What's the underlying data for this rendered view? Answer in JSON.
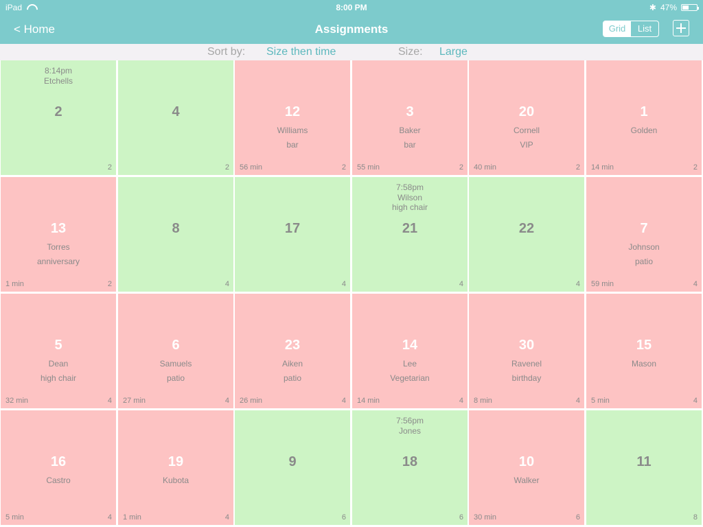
{
  "status_bar": {
    "device": "iPad",
    "time": "8:00 PM",
    "battery": "47%",
    "battery_level": 0.47,
    "icons": [
      "wifi-icon",
      "bluetooth-icon",
      "battery-icon"
    ]
  },
  "nav": {
    "back_label": "< Home",
    "title": "Assignments",
    "view_options": [
      "Grid",
      "List"
    ],
    "selected_view": "Grid",
    "add_icon": "plus-icon"
  },
  "sort_bar": {
    "sort_label": "Sort by:",
    "sort_value": "Size then time",
    "size_label": "Size:",
    "size_value": "Large"
  },
  "colors": {
    "header": "#7dcbcc",
    "accent": "#5cb8bd",
    "available": "#cdf4c5",
    "occupied": "#fdc3c3",
    "text_gray": "#8a8a8a"
  },
  "tables": [
    {
      "number": "2",
      "status": "available",
      "time": "8:14pm",
      "reservation_name": "Etchells",
      "reservation_note": "",
      "name": "",
      "note": "",
      "wait": "",
      "size": "2"
    },
    {
      "number": "4",
      "status": "available",
      "time": "",
      "reservation_name": "",
      "reservation_note": "",
      "name": "",
      "note": "",
      "wait": "",
      "size": "2"
    },
    {
      "number": "12",
      "status": "occupied",
      "time": "",
      "reservation_name": "",
      "reservation_note": "",
      "name": "Williams",
      "note": "bar",
      "wait": "56 min",
      "size": "2"
    },
    {
      "number": "3",
      "status": "occupied",
      "time": "",
      "reservation_name": "",
      "reservation_note": "",
      "name": "Baker",
      "note": "bar",
      "wait": "55 min",
      "size": "2"
    },
    {
      "number": "20",
      "status": "occupied",
      "time": "",
      "reservation_name": "",
      "reservation_note": "",
      "name": "Cornell",
      "note": "VIP",
      "wait": "40 min",
      "size": "2"
    },
    {
      "number": "1",
      "status": "occupied",
      "time": "",
      "reservation_name": "",
      "reservation_note": "",
      "name": "Golden",
      "note": "",
      "wait": "14 min",
      "size": "2"
    },
    {
      "number": "13",
      "status": "occupied",
      "time": "",
      "reservation_name": "",
      "reservation_note": "",
      "name": "Torres",
      "note": "anniversary",
      "wait": "1 min",
      "size": "2"
    },
    {
      "number": "8",
      "status": "available",
      "time": "",
      "reservation_name": "",
      "reservation_note": "",
      "name": "",
      "note": "",
      "wait": "",
      "size": "4"
    },
    {
      "number": "17",
      "status": "available",
      "time": "",
      "reservation_name": "",
      "reservation_note": "",
      "name": "",
      "note": "",
      "wait": "",
      "size": "4"
    },
    {
      "number": "21",
      "status": "available",
      "time": "7:58pm",
      "reservation_name": "Wilson",
      "reservation_note": "high chair",
      "name": "",
      "note": "",
      "wait": "",
      "size": "4"
    },
    {
      "number": "22",
      "status": "available",
      "time": "",
      "reservation_name": "",
      "reservation_note": "",
      "name": "",
      "note": "",
      "wait": "",
      "size": "4"
    },
    {
      "number": "7",
      "status": "occupied",
      "time": "",
      "reservation_name": "",
      "reservation_note": "",
      "name": "Johnson",
      "note": "patio",
      "wait": "59 min",
      "size": "4"
    },
    {
      "number": "5",
      "status": "occupied",
      "time": "",
      "reservation_name": "",
      "reservation_note": "",
      "name": "Dean",
      "note": "high chair",
      "wait": "32 min",
      "size": "4"
    },
    {
      "number": "6",
      "status": "occupied",
      "time": "",
      "reservation_name": "",
      "reservation_note": "",
      "name": "Samuels",
      "note": "patio",
      "wait": "27 min",
      "size": "4"
    },
    {
      "number": "23",
      "status": "occupied",
      "time": "",
      "reservation_name": "",
      "reservation_note": "",
      "name": "Aiken",
      "note": "patio",
      "wait": "26 min",
      "size": "4"
    },
    {
      "number": "14",
      "status": "occupied",
      "time": "",
      "reservation_name": "",
      "reservation_note": "",
      "name": "Lee",
      "note": "Vegetarian",
      "wait": "14 min",
      "size": "4"
    },
    {
      "number": "30",
      "status": "occupied",
      "time": "",
      "reservation_name": "",
      "reservation_note": "",
      "name": "Ravenel",
      "note": "birthday",
      "wait": "8 min",
      "size": "4"
    },
    {
      "number": "15",
      "status": "occupied",
      "time": "",
      "reservation_name": "",
      "reservation_note": "",
      "name": "Mason",
      "note": "",
      "wait": "5 min",
      "size": "4"
    },
    {
      "number": "16",
      "status": "occupied",
      "time": "",
      "reservation_name": "",
      "reservation_note": "",
      "name": "Castro",
      "note": "",
      "wait": "5 min",
      "size": "4"
    },
    {
      "number": "19",
      "status": "occupied",
      "time": "",
      "reservation_name": "",
      "reservation_note": "",
      "name": "Kubota",
      "note": "",
      "wait": "1 min",
      "size": "4"
    },
    {
      "number": "9",
      "status": "available",
      "time": "",
      "reservation_name": "",
      "reservation_note": "",
      "name": "",
      "note": "",
      "wait": "",
      "size": "6"
    },
    {
      "number": "18",
      "status": "available",
      "time": "7:56pm",
      "reservation_name": "Jones",
      "reservation_note": "",
      "name": "",
      "note": "",
      "wait": "",
      "size": "6"
    },
    {
      "number": "10",
      "status": "occupied",
      "time": "",
      "reservation_name": "",
      "reservation_note": "",
      "name": "Walker",
      "note": "",
      "wait": "30 min",
      "size": "6"
    },
    {
      "number": "11",
      "status": "available",
      "time": "",
      "reservation_name": "",
      "reservation_note": "",
      "name": "",
      "note": "",
      "wait": "",
      "size": "8"
    }
  ]
}
